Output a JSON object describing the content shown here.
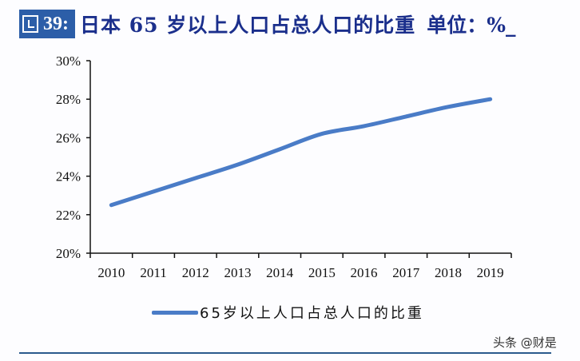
{
  "header": {
    "figure_label": "39:",
    "title": "日本 65 岁以上人口占总人口的比重",
    "unit": "单位：%_"
  },
  "legend": {
    "label": "65岁以上人口占总人口的比重",
    "color": "#4a7cc7"
  },
  "watermark": "头条 @财是",
  "chart_data": {
    "type": "line",
    "title": "日本 65 岁以上人口占总人口的比重",
    "xlabel": "",
    "ylabel": "",
    "unit": "%",
    "categories": [
      "2010",
      "2011",
      "2012",
      "2013",
      "2014",
      "2015",
      "2016",
      "2017",
      "2018",
      "2019"
    ],
    "series": [
      {
        "name": "65岁以上人口占总人口的比重",
        "color": "#4a7cc7",
        "values": [
          22.5,
          23.2,
          23.9,
          24.6,
          25.4,
          26.2,
          26.6,
          27.1,
          27.6,
          28.0
        ]
      }
    ],
    "ylim": [
      20,
      30
    ],
    "yticks": [
      "20%",
      "22%",
      "24%",
      "26%",
      "28%",
      "30%"
    ],
    "grid": false,
    "legend_position": "bottom"
  }
}
